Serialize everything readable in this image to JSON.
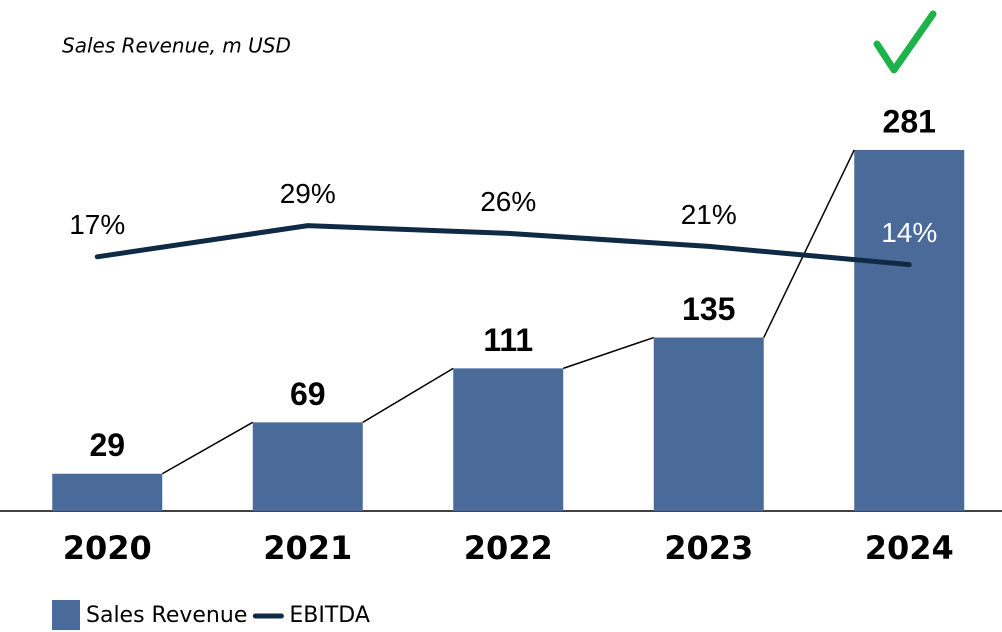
{
  "chart_data": {
    "type": "bar_line",
    "title": "Sales Revenue, m USD",
    "categories": [
      "2020",
      "2021",
      "2022",
      "2023",
      "2024"
    ],
    "series": [
      {
        "name": "Sales Revenue",
        "type": "bar",
        "color": "#4a6b9a",
        "values": [
          29,
          69,
          111,
          135,
          281
        ]
      },
      {
        "name": "EBITDA",
        "type": "line",
        "axis": "y2",
        "color": "#0f2a44",
        "values": [
          17,
          29,
          26,
          21,
          14
        ],
        "value_labels": [
          "17%",
          "29%",
          "26%",
          "21%",
          "14%"
        ]
      }
    ],
    "ylim": [
      0,
      300
    ],
    "y2lim": [
      0,
      100
    ]
  }
}
